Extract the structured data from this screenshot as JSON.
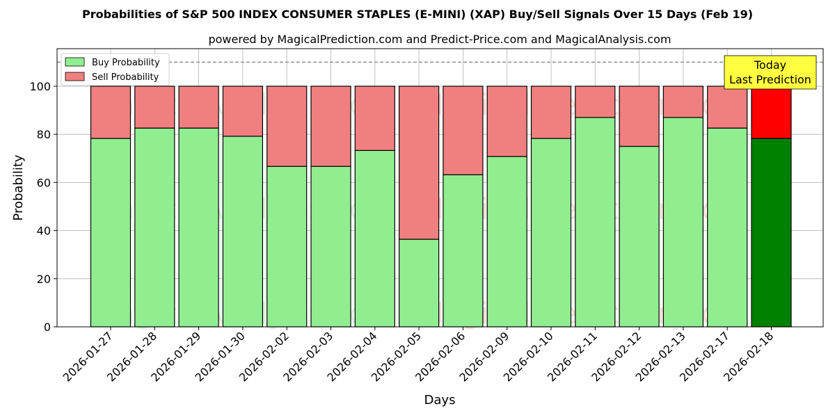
{
  "chart_data": {
    "type": "bar",
    "title": "Probabilities of S&P 500 INDEX CONSUMER STAPLES (E-MINI) (XAP) Buy/Sell Signals Over 15 Days (Feb 19)",
    "subtitle": "powered by MagicalPrediction.com and Predict-Price.com and MagicalAnalysis.com",
    "xlabel": "Days",
    "ylabel": "Probability",
    "ylim": [
      0,
      115.6
    ],
    "yticks": [
      0,
      20,
      40,
      60,
      80,
      100
    ],
    "grid": true,
    "legend_position": "top-left",
    "categories": [
      "2026-01-27",
      "2026-01-28",
      "2026-01-29",
      "2026-01-30",
      "2026-02-02",
      "2026-02-03",
      "2026-02-04",
      "2026-02-05",
      "2026-02-06",
      "2026-02-09",
      "2026-02-10",
      "2026-02-11",
      "2026-02-12",
      "2026-02-13",
      "2026-02-17",
      "2026-02-18"
    ],
    "series": [
      {
        "name": "Buy Probability",
        "color": "#90ee90",
        "values": [
          78.3,
          82.6,
          82.6,
          79.2,
          66.7,
          66.7,
          73.3,
          36.4,
          63.2,
          70.8,
          78.3,
          87.0,
          75.0,
          87.0,
          82.6,
          78.3
        ]
      },
      {
        "name": "Sell Probability",
        "color": "#f08080",
        "values": [
          21.7,
          17.4,
          17.4,
          20.8,
          33.3,
          33.3,
          26.7,
          63.6,
          36.8,
          29.2,
          21.7,
          13.0,
          25.0,
          13.0,
          17.4,
          21.7
        ]
      }
    ],
    "highlight": {
      "buy_color": "#008000",
      "sell_color": "#ff0000"
    },
    "reference_line": 110,
    "annotation": {
      "line1": "Today",
      "line2": "Last Prediction"
    },
    "watermarks": [
      "MagicalAnalysis.com",
      "MagicalPrediction.com"
    ]
  }
}
